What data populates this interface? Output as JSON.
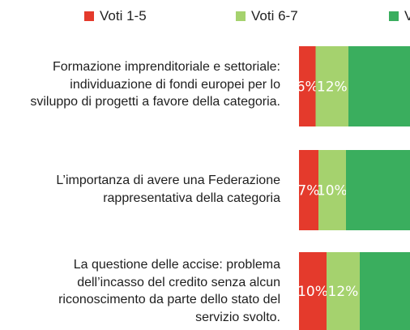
{
  "colors": {
    "low": "#e43a2c",
    "mid": "#a5d26e",
    "high": "#3aae5e",
    "text": "#1e1e1e"
  },
  "chart_data": {
    "type": "bar",
    "orientation": "horizontal",
    "stacked": true,
    "legend_position": "top",
    "grid": false,
    "series": [
      {
        "name": "Voti 1-5",
        "values": [
          6,
          7,
          10
        ]
      },
      {
        "name": "Voti 6-7",
        "values": [
          12,
          10,
          12
        ]
      },
      {
        "name": "V"
      }
    ],
    "categories": [
      {
        "lines": [
          "Formazione imprenditoriale e settoriale:",
          "individuazione di fondi europei per lo",
          "sviluppo di progetti a favore della categoria."
        ]
      },
      {
        "lines": [
          "L’importanza di avere una Federazione",
          "rappresentativa della categoria"
        ]
      },
      {
        "lines": [
          "La questione delle accise: problema",
          "dell’incasso del credito senza alcun",
          "riconoscimento da parte dello stato del",
          "servizio svolto."
        ]
      }
    ],
    "data_labels": [
      [
        "6%",
        "12%"
      ],
      [
        "7%",
        "10%"
      ],
      [
        "10%",
        "12%"
      ]
    ]
  }
}
